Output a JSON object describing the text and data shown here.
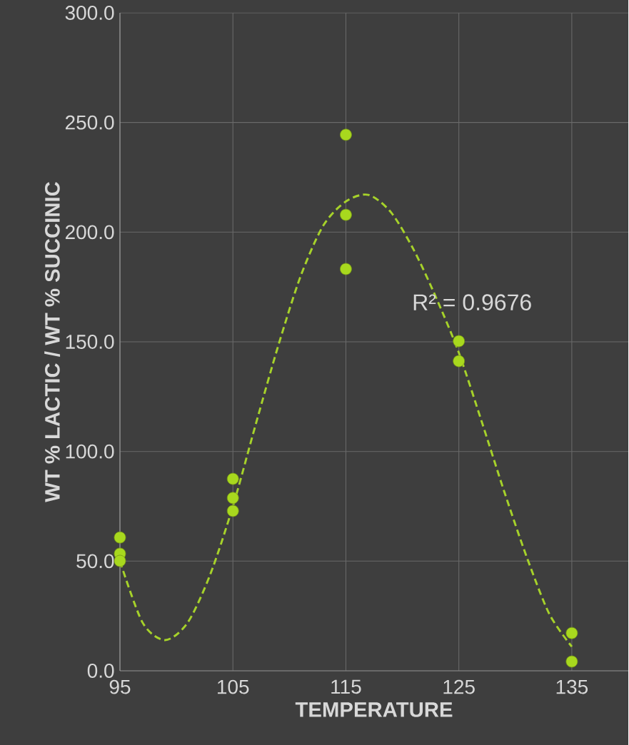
{
  "chart_data": {
    "type": "scatter",
    "xlabel": "TEMPERATURE",
    "ylabel": "WT % LACTIC / WT % SUCCINIC",
    "xlim": [
      95,
      140
    ],
    "xticks": [
      95,
      105,
      115,
      125,
      135
    ],
    "ylim": [
      0,
      300
    ],
    "yticks": [
      {
        "value": 0,
        "label": "0.0"
      },
      {
        "value": 50,
        "label": "50.0"
      },
      {
        "value": 100,
        "label": "100.0"
      },
      {
        "value": 150,
        "label": "150.0"
      },
      {
        "value": 200,
        "label": "200.0"
      },
      {
        "value": 250,
        "label": "250.0"
      },
      {
        "value": 300,
        "label": "300.0"
      }
    ],
    "grid": true,
    "annotations": [
      "R² = 0.9676"
    ],
    "series": [
      {
        "type": "scatter",
        "color": "#a8d81e",
        "x": [
          95,
          95,
          95,
          105,
          105,
          105,
          115,
          115,
          115,
          125,
          125,
          135,
          135
        ],
        "values": [
          60.8,
          53.4,
          50.1,
          87.5,
          78.8,
          72.9,
          244.4,
          207.9,
          183.2,
          150.3,
          141.2,
          17.2,
          4.2
        ]
      },
      {
        "type": "line",
        "line_style": "dashed",
        "color": "#a6d22a",
        "x": [
          95,
          97,
          99,
          101,
          103,
          105,
          107,
          109,
          111,
          113,
          115,
          117,
          119,
          121,
          123,
          125,
          127,
          129,
          131,
          133,
          135
        ],
        "values": [
          50,
          22,
          14,
          22,
          44,
          75,
          112,
          148,
          180,
          203,
          214,
          217,
          209,
          192,
          170,
          145,
          114,
          82,
          52,
          26,
          11
        ]
      }
    ]
  }
}
